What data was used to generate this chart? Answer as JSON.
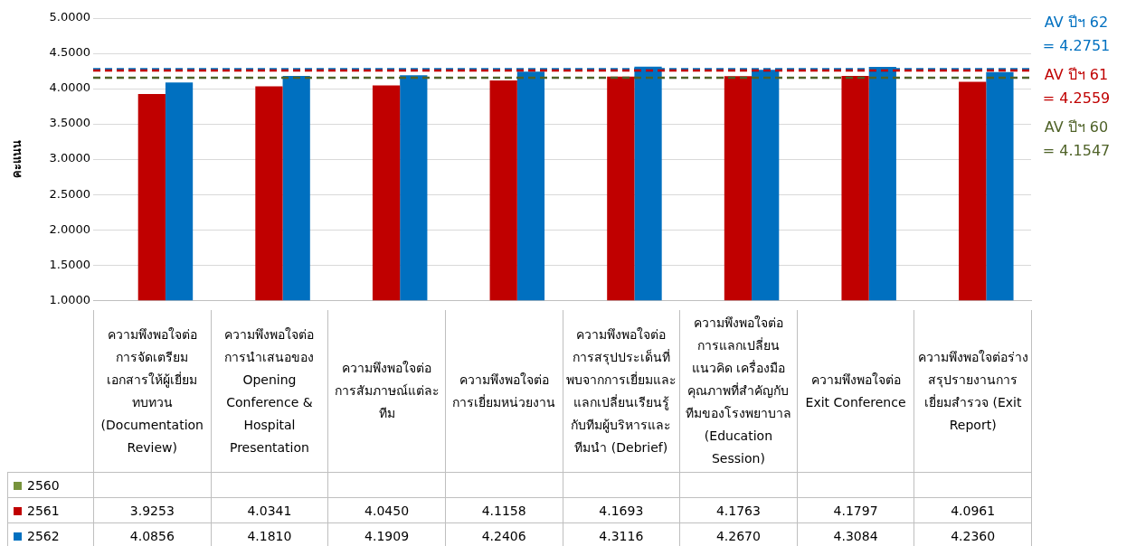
{
  "chart_data": {
    "type": "bar",
    "ylabel": "คะแนน",
    "categories": [
      "ความพึงพอใจต่อการจัดเตรียมเอกสารให้ผู้เยี่ยมทบทวน (Documentation Review)",
      "ความพึงพอใจต่อการนำเสนอของ Opening Conference & Hospital Presentation",
      "ความพึงพอใจต่อการสัมภาษณ์แต่ละทีม",
      "ความพึงพอใจต่อการเยี่ยมหน่วยงาน",
      "ความพึงพอใจต่อการสรุปประเด็นที่พบจากการเยี่ยมและแลกเปลี่ยนเรียนรู้กับทีมผู้บริหารและทีมนำ (Debrief)",
      "ความพึงพอใจต่อการแลกเปลี่ยนแนวคิด เครื่องมือคุณภาพที่สำคัญกับทีมของโรงพยาบาล (Education Session)",
      "ความพึงพอใจต่อ Exit Conference",
      "ความพึงพอใจต่อร่างสรุปรายงานการเยี่ยมสำรวจ (Exit Report)"
    ],
    "series": [
      {
        "name": "2560",
        "color": "#77933c",
        "values": [
          null,
          null,
          null,
          null,
          null,
          null,
          null,
          null
        ]
      },
      {
        "name": "2561",
        "color": "#c00000",
        "values": [
          3.9253,
          4.0341,
          4.045,
          4.1158,
          4.1693,
          4.1763,
          4.1797,
          4.0961
        ]
      },
      {
        "name": "2562",
        "color": "#0070c0",
        "values": [
          4.0856,
          4.181,
          4.1909,
          4.2406,
          4.3116,
          4.267,
          4.3084,
          4.236
        ]
      }
    ],
    "value_labels": [
      [
        null,
        null,
        null,
        null,
        null,
        null,
        null,
        null
      ],
      [
        "3.9253",
        "4.0341",
        "4.0450",
        "4.1158",
        "4.1693",
        "4.1763",
        "4.1797",
        "4.0961"
      ],
      [
        "4.0856",
        "4.1810",
        "4.1909",
        "4.2406",
        "4.3116",
        "4.2670",
        "4.3084",
        "4.2360"
      ]
    ],
    "ylim": [
      1,
      5
    ],
    "yticks": [
      {
        "value": 1,
        "label": "1.0000"
      },
      {
        "value": 1.5,
        "label": "1.5000"
      },
      {
        "value": 2,
        "label": "2.0000"
      },
      {
        "value": 2.5,
        "label": "2.5000"
      },
      {
        "value": 3,
        "label": "3.0000"
      },
      {
        "value": 3.5,
        "label": "3.5000"
      },
      {
        "value": 4,
        "label": "4.0000"
      },
      {
        "value": 4.5,
        "label": "4.5000"
      },
      {
        "value": 5,
        "label": "5.0000"
      }
    ],
    "grid": "y",
    "legend": "bottom left",
    "ref_lines": [
      {
        "axis": "y",
        "value": 4.2751,
        "label": "AV ปีฯ 62 = 4.2751",
        "color": "#0070c0",
        "line_style": "dashed"
      },
      {
        "axis": "y",
        "value": 4.2559,
        "label": "AV ปีฯ 61 = 4.2559",
        "color": "#c00000",
        "line_style": "dashed"
      },
      {
        "axis": "y",
        "value": 4.1547,
        "label": "AV ปีฯ 60 = 4.1547",
        "color": "#4f6228",
        "line_style": "dashed"
      }
    ]
  }
}
